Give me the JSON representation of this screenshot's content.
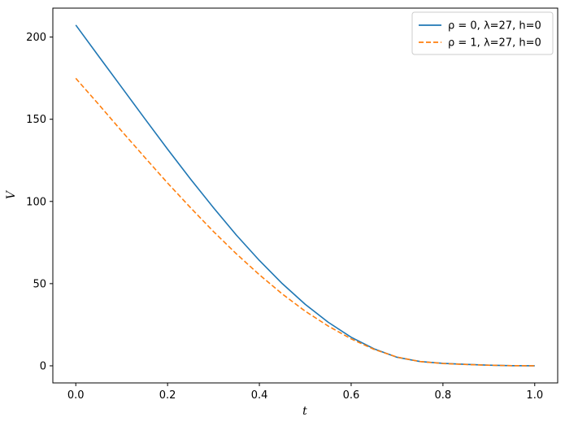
{
  "chart_data": {
    "type": "line",
    "title": "",
    "xlabel": "t",
    "ylabel": "V",
    "xlim": [
      -0.05,
      1.05
    ],
    "ylim": [
      -10.4,
      217.6
    ],
    "grid": false,
    "legend_position": "top-right",
    "x_ticks": [
      "0.0",
      "0.2",
      "0.4",
      "0.6",
      "0.8",
      "1.0"
    ],
    "y_ticks": [
      "0",
      "50",
      "100",
      "150",
      "200"
    ],
    "x": [
      0.0,
      0.05,
      0.1,
      0.15,
      0.2,
      0.25,
      0.3,
      0.35,
      0.4,
      0.45,
      0.5,
      0.55,
      0.6,
      0.65,
      0.7,
      0.75,
      0.8,
      0.85,
      0.9,
      0.95,
      1.0
    ],
    "series": [
      {
        "name": "ρ = 0, λ=27, h=0",
        "color": "#1f77b4",
        "dash": "solid",
        "values": [
          207.3,
          188.3,
          169.4,
          150.5,
          131.8,
          113.6,
          96.2,
          79.5,
          64.1,
          50.0,
          37.4,
          26.5,
          17.4,
          10.3,
          5.2,
          2.6,
          1.5,
          0.9,
          0.4,
          0.1,
          0.0
        ]
      },
      {
        "name": "ρ = 1, λ=27, h=0",
        "color": "#ff7f0e",
        "dash": "dashed",
        "values": [
          174.9,
          159.0,
          142.8,
          126.9,
          111.2,
          96.2,
          81.7,
          68.1,
          55.4,
          43.7,
          33.2,
          24.2,
          16.4,
          10.0,
          5.3,
          2.6,
          1.4,
          0.8,
          0.35,
          0.1,
          0.0
        ]
      }
    ],
    "x_curve": [
      0.0,
      0.05,
      0.1,
      0.15,
      0.2,
      0.25,
      0.3,
      0.35,
      0.4,
      0.45,
      0.5,
      0.55,
      0.6,
      0.65,
      0.7,
      0.75,
      0.8,
      0.85,
      0.9,
      0.95,
      1.0
    ]
  },
  "colors": {
    "axes": "#000000",
    "background": "#ffffff"
  }
}
